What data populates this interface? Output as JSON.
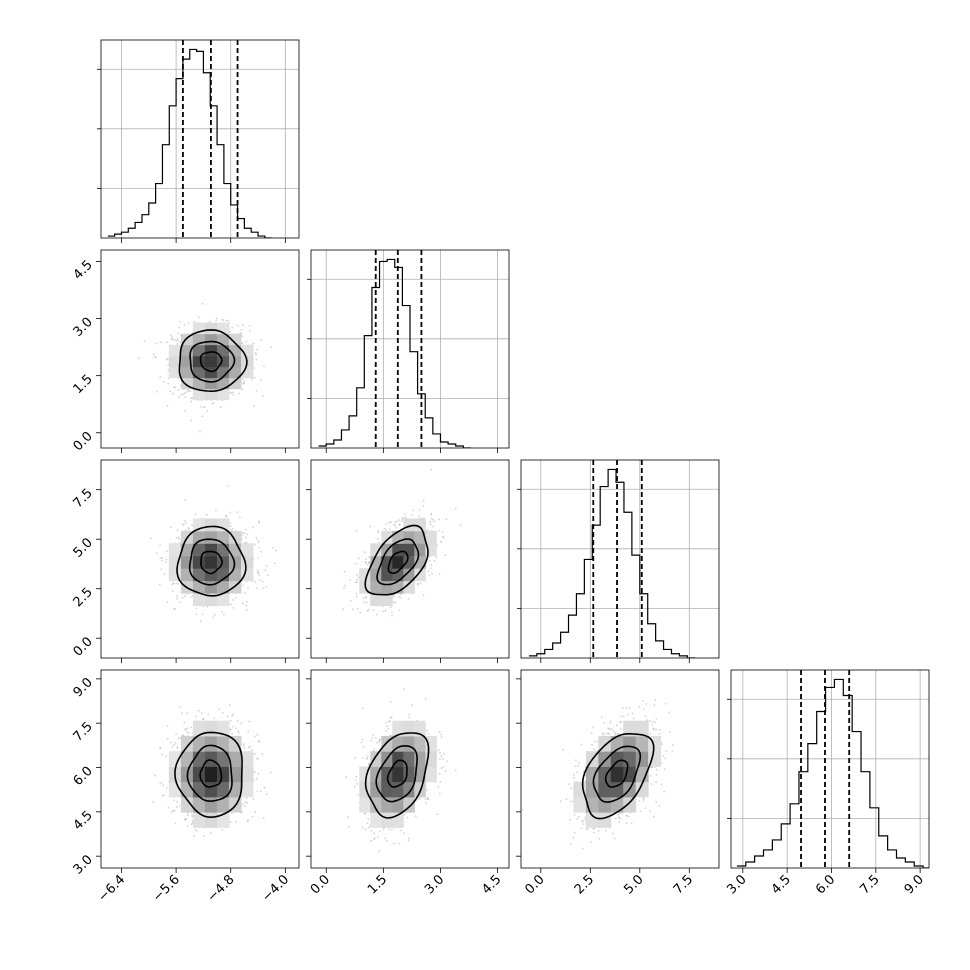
{
  "chart_data": {
    "type": "corner",
    "title": "",
    "colors": {
      "points": "#9e9e9e",
      "line": "#000000",
      "grid": "#b0b0b0"
    },
    "grid": true,
    "parameters": [
      {
        "xlim": [
          -6.7,
          -3.8
        ],
        "ticks": [
          -6.4,
          -5.6,
          -4.8,
          -4.0
        ],
        "tick_labels": [
          "−6.4",
          "−5.6",
          "−4.8",
          "−4.0"
        ]
      },
      {
        "xlim": [
          -0.4,
          4.8
        ],
        "ticks": [
          0.0,
          1.5,
          3.0,
          4.5
        ],
        "tick_labels": [
          "0.0",
          "1.5",
          "3.0",
          "4.5"
        ]
      },
      {
        "xlim": [
          -1.0,
          9.0
        ],
        "ticks": [
          0.0,
          2.5,
          5.0,
          7.5
        ],
        "tick_labels": [
          "0.0",
          "2.5",
          "5.0",
          "7.5"
        ]
      },
      {
        "xlim": [
          2.6,
          9.3
        ],
        "ticks": [
          3.0,
          4.5,
          6.0,
          7.5,
          9.0
        ],
        "tick_labels": [
          "3.0",
          "4.5",
          "6.0",
          "7.5",
          "9.0"
        ]
      }
    ],
    "histograms": [
      {
        "bin_start": -6.6,
        "bin_width": 0.1,
        "counts": [
          1,
          2,
          3,
          5,
          8,
          12,
          18,
          28,
          48,
          68,
          82,
          92,
          97,
          96,
          85,
          68,
          48,
          28,
          17,
          10,
          5,
          3,
          1,
          0
        ],
        "quantiles": [
          -5.5,
          -5.09,
          -4.7
        ]
      },
      {
        "bin_start": -0.2,
        "bin_width": 0.2,
        "counts": [
          1,
          2,
          4,
          9,
          16,
          30,
          56,
          80,
          93,
          94,
          90,
          71,
          48,
          27,
          15,
          7,
          3,
          2,
          1,
          0
        ],
        "quantiles": [
          1.3,
          1.88,
          2.5
        ]
      },
      {
        "bin_start": -0.6,
        "bin_width": 0.4,
        "counts": [
          1,
          2,
          4,
          7,
          12,
          20,
          30,
          46,
          62,
          80,
          88,
          82,
          68,
          48,
          30,
          16,
          8,
          4,
          2,
          1,
          0
        ],
        "quantiles": [
          2.65,
          3.85,
          5.1
        ]
      },
      {
        "bin_start": 2.8,
        "bin_width": 0.3,
        "counts": [
          1,
          3,
          6,
          9,
          14,
          22,
          32,
          48,
          62,
          78,
          90,
          94,
          86,
          68,
          48,
          30,
          16,
          9,
          5,
          3,
          1,
          0
        ],
        "quantiles": [
          4.97,
          5.78,
          6.6
        ]
      }
    ],
    "joint_distributions": [
      {
        "row": 1,
        "col": 0,
        "mean_x": -5.09,
        "mean_y": 1.88,
        "sd_x": 0.28,
        "sd_y": 0.46,
        "rho": 0.0
      },
      {
        "row": 2,
        "col": 0,
        "mean_x": -5.09,
        "mean_y": 3.85,
        "sd_x": 0.28,
        "sd_y": 1.0,
        "rho": 0.0
      },
      {
        "row": 2,
        "col": 1,
        "mean_x": 1.88,
        "mean_y": 3.85,
        "sd_x": 0.46,
        "sd_y": 1.0,
        "rho": 0.5
      },
      {
        "row": 3,
        "col": 0,
        "mean_x": -5.09,
        "mean_y": 5.78,
        "sd_x": 0.28,
        "sd_y": 0.82,
        "rho": 0.0
      },
      {
        "row": 3,
        "col": 1,
        "mean_x": 1.88,
        "mean_y": 5.78,
        "sd_x": 0.46,
        "sd_y": 0.82,
        "rho": 0.33
      },
      {
        "row": 3,
        "col": 2,
        "mean_x": 3.85,
        "mean_y": 5.78,
        "sd_x": 1.0,
        "sd_y": 0.82,
        "rho": 0.45
      }
    ]
  }
}
